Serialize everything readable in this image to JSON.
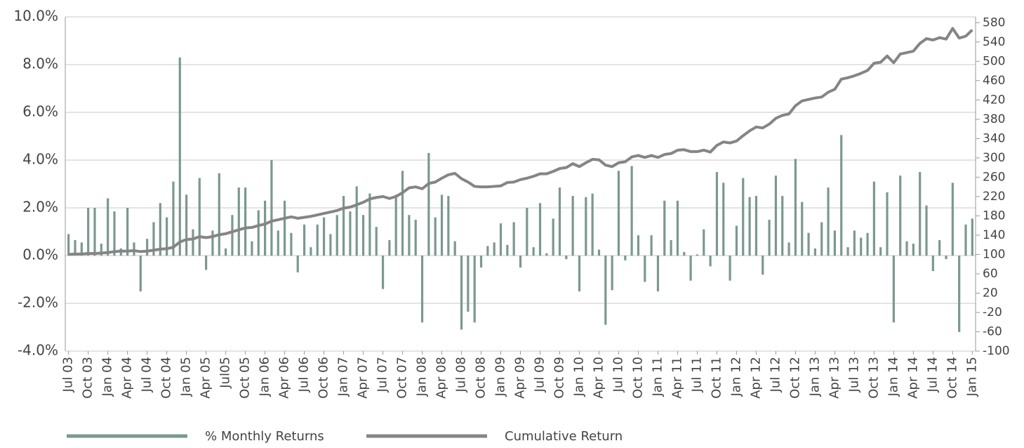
{
  "chart_data": {
    "type": "bar-line",
    "categories": [
      "Jul 03",
      null,
      null,
      "Oct 03",
      null,
      null,
      "Jan 04",
      null,
      null,
      "Apr 04",
      null,
      null,
      "Jul 04",
      null,
      null,
      "Oct 04",
      null,
      null,
      "Jan 05",
      null,
      null,
      "Apr 05",
      null,
      null,
      "Jul05",
      null,
      null,
      "Oct 05",
      null,
      null,
      "Jan 06",
      null,
      null,
      "Apr 06",
      null,
      null,
      "Jul 06",
      null,
      null,
      "Oct 06",
      null,
      null,
      "Jan 07",
      null,
      null,
      "Apr 07",
      null,
      null,
      "Jul 07",
      null,
      null,
      "Oct 07",
      null,
      null,
      "Jan 08",
      null,
      null,
      "Apr 08",
      null,
      null,
      "Jul 08",
      null,
      null,
      "Oct 08",
      null,
      null,
      "Jan 09",
      null,
      null,
      "Apr 09",
      null,
      null,
      "Jul 09",
      null,
      null,
      "Oct 09",
      null,
      null,
      "Jan 10",
      null,
      null,
      "Apr 10",
      null,
      null,
      "Jul 10",
      null,
      null,
      "Oct 10",
      null,
      null,
      "Jan 11",
      null,
      null,
      "Apr 11",
      null,
      null,
      "Jul 11",
      null,
      null,
      "Oct 11",
      null,
      null,
      "Jan 12",
      null,
      null,
      "Apr 12",
      null,
      null,
      "Jul 12",
      null,
      null,
      "Oct 12",
      null,
      null,
      "Jan 13",
      null,
      null,
      "Apr 13",
      null,
      null,
      "Jul 13",
      null,
      null,
      "Oct 13",
      null,
      null,
      "Jan 14",
      null,
      null,
      "Apr 14",
      null,
      null,
      "Jul 14",
      null,
      null,
      "Oct 14",
      null,
      null,
      "Jan 15"
    ],
    "series": [
      {
        "name": "% Monthly Returns",
        "color": "#7b9891",
        "kind": "bar",
        "values": [
          0.9,
          0.65,
          0.55,
          2.0,
          2.0,
          0.5,
          2.4,
          1.85,
          0.3,
          2.0,
          0.55,
          -1.5,
          0.7,
          1.4,
          2.2,
          1.6,
          3.1,
          8.3,
          2.55,
          1.1,
          3.25,
          -0.6,
          1.05,
          3.45,
          0.3,
          1.7,
          2.85,
          2.85,
          0.6,
          1.9,
          2.3,
          4.0,
          1.05,
          2.3,
          0.95,
          -0.7,
          1.3,
          0.35,
          1.3,
          1.6,
          0.9,
          1.7,
          2.5,
          1.85,
          2.9,
          1.7,
          2.6,
          1.2,
          -1.4,
          0.65,
          2.55,
          3.55,
          1.7,
          1.5,
          -2.8,
          4.3,
          1.6,
          2.55,
          2.5,
          0.6,
          -3.1,
          -2.35,
          -2.8,
          -0.5,
          0.4,
          0.55,
          1.35,
          0.45,
          1.4,
          -0.5,
          2.0,
          0.35,
          2.2,
          0.1,
          1.55,
          2.85,
          -0.15,
          2.5,
          -1.5,
          2.45,
          2.6,
          0.25,
          -2.9,
          -1.45,
          3.55,
          -0.2,
          3.75,
          0.85,
          -1.1,
          0.85,
          -1.5,
          2.3,
          0.65,
          2.3,
          0.15,
          -1.05,
          0.05,
          1.1,
          -0.45,
          3.5,
          3.05,
          -1.05,
          1.25,
          3.25,
          2.45,
          2.5,
          -0.8,
          1.5,
          3.35,
          2.5,
          0.55,
          4.05,
          2.25,
          0.95,
          0.3,
          1.4,
          2.85,
          1.05,
          5.05,
          0.35,
          1.05,
          0.75,
          0.95,
          3.1,
          0.35,
          2.65,
          -2.8,
          3.35,
          0.6,
          0.5,
          3.5,
          2.1,
          -0.65,
          0.65,
          -0.15,
          3.05,
          -3.2,
          1.3,
          1.55
        ]
      },
      {
        "name": "Cumulative Return",
        "color": "#858585",
        "kind": "line",
        "axis": "y2",
        "values": [
          100,
          101,
          101,
          102,
          102,
          103,
          104,
          106,
          107,
          107,
          108,
          106,
          107,
          109,
          111,
          112,
          115,
          126,
          131,
          132,
          137,
          135,
          137,
          141,
          143,
          147,
          151,
          155,
          156,
          160,
          163,
          169,
          172,
          175,
          178,
          175,
          177,
          179,
          182,
          185,
          188,
          191,
          196,
          198,
          203,
          208,
          215,
          218,
          220,
          216,
          220,
          228,
          238,
          240,
          236,
          247,
          250,
          258,
          265,
          268,
          257,
          250,
          241,
          240,
          240,
          241,
          242,
          249,
          250,
          255,
          258,
          262,
          267,
          267,
          272,
          278,
          280,
          288,
          282,
          290,
          297,
          296,
          285,
          282,
          290,
          292,
          302,
          305,
          301,
          305,
          301,
          307,
          309,
          316,
          317,
          313,
          313,
          316,
          312,
          326,
          333,
          331,
          335,
          346,
          356,
          364,
          362,
          370,
          382,
          388,
          391,
          408,
          418,
          421,
          424,
          426,
          436,
          442,
          463,
          466,
          470,
          475,
          481,
          496,
          498,
          511,
          497,
          515,
          518,
          521,
          537,
          547,
          544,
          549,
          546,
          568,
          548,
          552,
          565
        ]
      }
    ],
    "ylim": [
      -4,
      10
    ],
    "yticks": [
      {
        "value": -4,
        "label": "-4.0%"
      },
      {
        "value": -2,
        "label": "-2.0%"
      },
      {
        "value": 0,
        "label": "0.0%"
      },
      {
        "value": 2,
        "label": "2.0%"
      },
      {
        "value": 4,
        "label": "4.0%"
      },
      {
        "value": 6,
        "label": "6.0%"
      },
      {
        "value": 8,
        "label": "8.0%"
      },
      {
        "value": 10,
        "label": "10.0%"
      }
    ],
    "y2lim": [
      -100,
      592
    ],
    "y2ticks": [
      -100,
      -60,
      -20,
      20,
      60,
      100,
      140,
      180,
      220,
      260,
      300,
      340,
      380,
      420,
      460,
      500,
      540,
      580
    ],
    "grid": true
  }
}
